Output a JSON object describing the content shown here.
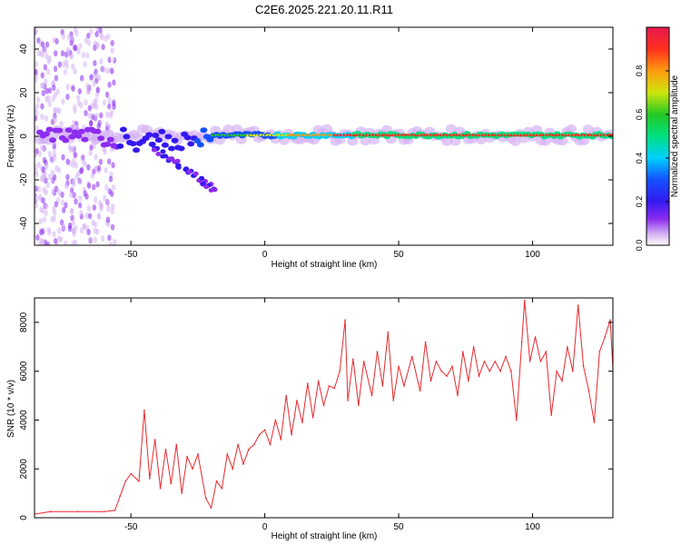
{
  "title": "C2E6.2025.221.20.11.R11",
  "colors": {
    "snr_line": "#e8282d",
    "frame": "#000000"
  },
  "chart_data": [
    {
      "type": "heatmap",
      "title": "C2E6.2025.221.20.11.R11",
      "xlabel": "Height of straight line (km)",
      "ylabel": "Frequency (Hz)",
      "xlim": [
        -86,
        130
      ],
      "ylim": [
        -50,
        50
      ],
      "xticks": [
        -50,
        0,
        50,
        100
      ],
      "yticks": [
        -40,
        -20,
        0,
        20,
        40
      ],
      "grid": false,
      "colorbar": {
        "label": "Normalized spectral amplitude",
        "range": [
          0,
          1
        ],
        "ticks": [
          "0.0",
          "0.2",
          "0.4",
          "0.6",
          "0.8"
        ],
        "colormap": [
          "#ffffff",
          "#d6b4f4",
          "#8d2cf0",
          "#3419f0",
          "#1450ff",
          "#00d0ff",
          "#00e080",
          "#23c823",
          "#cce60c",
          "#ff9b0f",
          "#ff2f1c",
          "#e6194d"
        ]
      },
      "features": [
        {
          "name": "carrier",
          "x_range": [
            -84,
            130
          ],
          "center_freq_hz": 0.5,
          "max_amplitude": 0.95
        },
        {
          "name": "broadband-noise",
          "x_range": [
            -86,
            -56
          ],
          "freq_range_hz": [
            -50,
            50
          ],
          "amplitude": 0.15
        },
        {
          "name": "chirp-branch",
          "x_range": [
            -42,
            -18
          ],
          "freq_range_hz": [
            -25,
            -5
          ],
          "amplitude": 0.35
        }
      ]
    },
    {
      "type": "line",
      "xlabel": "Height of straight line (km)",
      "ylabel": "SNR (10 * v/v)",
      "xlim": [
        -86,
        130
      ],
      "ylim": [
        0,
        9000
      ],
      "xticks": [
        -50,
        0,
        50,
        100
      ],
      "yticks": [
        0,
        2000,
        4000,
        6000,
        8000
      ],
      "grid": false,
      "series": [
        {
          "x": [
            -86,
            -80,
            -70,
            -60,
            -56,
            -54,
            -52,
            -50,
            -47,
            -45,
            -43,
            -41,
            -39,
            -37,
            -35,
            -33,
            -31,
            -29,
            -27,
            -25,
            -22,
            -20,
            -18,
            -16,
            -14,
            -12,
            -10,
            -8,
            -6,
            -4,
            -2,
            0,
            2,
            4,
            6,
            8,
            10,
            12,
            14,
            16,
            18,
            20,
            22,
            24,
            26,
            28,
            30,
            31,
            33,
            35,
            37,
            40,
            42,
            44,
            46,
            48,
            50,
            52,
            55,
            58,
            60,
            62,
            64,
            66,
            68,
            70,
            72,
            74,
            76,
            78,
            80,
            82,
            84,
            86,
            88,
            90,
            92,
            94,
            96,
            97,
            99,
            101,
            103,
            105,
            107,
            109,
            111,
            113,
            115,
            117,
            119,
            121,
            123,
            125,
            127,
            129,
            130
          ],
          "y": [
            150,
            250,
            250,
            250,
            300,
            900,
            1500,
            1800,
            1500,
            4400,
            1600,
            3200,
            1200,
            2800,
            1400,
            3000,
            1000,
            2500,
            2000,
            2600,
            800,
            400,
            1500,
            1200,
            2600,
            2000,
            3000,
            2200,
            2800,
            3000,
            3400,
            3600,
            3000,
            4000,
            3200,
            5000,
            3400,
            4800,
            3900,
            5500,
            4100,
            5600,
            4600,
            5400,
            5300,
            6000,
            8100,
            4800,
            6500,
            4600,
            6400,
            5000,
            6800,
            5400,
            7600,
            4800,
            6200,
            5400,
            6600,
            5200,
            7200,
            5600,
            6400,
            6000,
            5800,
            6200,
            5000,
            6800,
            5600,
            7000,
            5800,
            6400,
            6000,
            6400,
            6000,
            6600,
            6000,
            4000,
            7200,
            8900,
            6400,
            7400,
            6400,
            6800,
            4200,
            6000,
            5600,
            7000,
            6000,
            8700,
            6200,
            5200,
            3900,
            6800,
            7400,
            8100,
            6100
          ]
        }
      ]
    }
  ]
}
